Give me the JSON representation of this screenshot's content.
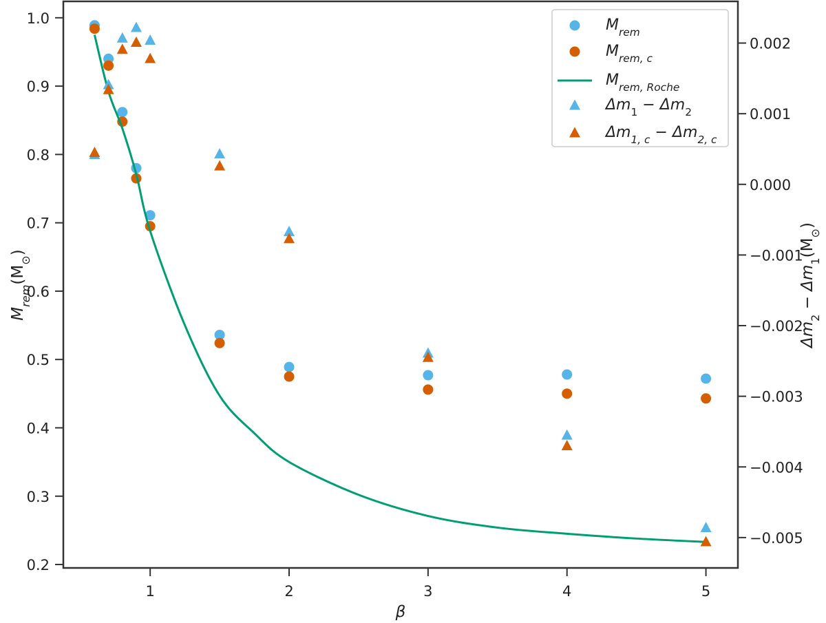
{
  "chart_data": {
    "type": "scatter",
    "title": "",
    "xlabel": [
      {
        "t": "β",
        "i": true
      }
    ],
    "ylabel": [
      {
        "t": "M",
        "i": true
      },
      {
        "t": "rem",
        "i": true,
        "sub": true
      },
      {
        "t": "(M",
        "i": false
      },
      {
        "t": "⊙",
        "sub": true
      },
      {
        "t": ")"
      }
    ],
    "y2label": [
      {
        "t": "Δm",
        "i": true
      },
      {
        "t": "2",
        "sub": true
      },
      {
        "t": " − Δm",
        "i": true
      },
      {
        "t": "1",
        "sub": true
      },
      {
        "t": "(M"
      },
      {
        "t": "⊙",
        "sub": true
      },
      {
        "t": ")"
      }
    ],
    "xlim": [
      0.375,
      5.23
    ],
    "ylim": [
      0.195,
      1.024
    ],
    "y2lim": [
      -0.00543,
      0.00259
    ],
    "xticks": [
      1,
      2,
      3,
      4,
      5
    ],
    "xtick_labels": [
      "1",
      "2",
      "3",
      "4",
      "5"
    ],
    "yticks": [
      0.2,
      0.3,
      0.4,
      0.5,
      0.6,
      0.7,
      0.8,
      0.9,
      1.0
    ],
    "ytick_labels": [
      "0.2",
      "0.3",
      "0.4",
      "0.5",
      "0.6",
      "0.7",
      "0.8",
      "0.9",
      "1.0"
    ],
    "y2ticks": [
      -0.005,
      -0.004,
      -0.003,
      -0.002,
      -0.001,
      0.0,
      0.001,
      0.002
    ],
    "y2tick_labels": [
      "−0.005",
      "−0.004",
      "−0.003",
      "−0.002",
      "−0.001",
      "0.000",
      "0.001",
      "0.002"
    ],
    "grid": false,
    "legend_placement": "top-right",
    "series": [
      {
        "name": [
          {
            "t": "M",
            "i": true
          },
          {
            "t": "rem",
            "i": true,
            "sub": true
          }
        ],
        "marker": "circle",
        "axis": "left",
        "color": "#56B4E9",
        "x": [
          0.6,
          0.7,
          0.8,
          0.9,
          1.0,
          1.5,
          2,
          3,
          4,
          5
        ],
        "y": [
          0.989,
          0.94,
          0.862,
          0.78,
          0.711,
          0.536,
          0.489,
          0.477,
          0.478,
          0.472
        ]
      },
      {
        "name": [
          {
            "t": "M",
            "i": true
          },
          {
            "t": "rem, c",
            "i": true,
            "sub": true
          }
        ],
        "marker": "circle",
        "axis": "left",
        "color": "#D55E00",
        "x": [
          0.6,
          0.7,
          0.8,
          0.9,
          1.0,
          1.5,
          2,
          3,
          4,
          5
        ],
        "y": [
          0.984,
          0.93,
          0.848,
          0.765,
          0.695,
          0.524,
          0.475,
          0.456,
          0.45,
          0.443
        ]
      },
      {
        "name": [
          {
            "t": "M",
            "i": true
          },
          {
            "t": "rem, Roche",
            "i": true,
            "sub": true
          }
        ],
        "marker": "line",
        "axis": "left",
        "color": "#009E73",
        "x": [
          0.6,
          0.7,
          0.8,
          0.9,
          1.0,
          1.25,
          1.5,
          1.75,
          2,
          2.5,
          3,
          3.5,
          4,
          4.5,
          5
        ],
        "y": [
          0.975,
          0.892,
          0.838,
          0.771,
          0.688,
          0.55,
          0.447,
          0.392,
          0.35,
          0.302,
          0.271,
          0.254,
          0.245,
          0.238,
          0.233
        ]
      },
      {
        "name": [
          {
            "t": "Δm",
            "i": true
          },
          {
            "t": "1",
            "sub": true
          },
          {
            "t": " − Δm",
            "i": true
          },
          {
            "t": "2",
            "sub": true
          }
        ],
        "marker": "triangle",
        "axis": "right",
        "color": "#56B4E9",
        "x": [
          0.6,
          0.7,
          0.8,
          0.9,
          1.0,
          1.5,
          2,
          3,
          4,
          5
        ],
        "y": [
          0.00042,
          0.00141,
          0.00207,
          0.00222,
          0.00204,
          0.00043,
          -0.00067,
          -0.00239,
          -0.00355,
          -0.00486
        ]
      },
      {
        "name": [
          {
            "t": "Δm",
            "i": true
          },
          {
            "t": "1, c",
            "i": true,
            "sub": true
          },
          {
            "t": " − Δm",
            "i": true
          },
          {
            "t": "2, c",
            "i": true,
            "sub": true
          }
        ],
        "marker": "triangle",
        "axis": "right",
        "color": "#D55E00",
        "x": [
          0.6,
          0.7,
          0.8,
          0.9,
          1.0,
          1.5,
          2,
          3,
          4,
          5
        ],
        "y": [
          0.00045,
          0.00134,
          0.00191,
          0.00201,
          0.00178,
          0.00026,
          -0.00077,
          -0.00245,
          -0.0037,
          -0.00506
        ]
      }
    ]
  }
}
